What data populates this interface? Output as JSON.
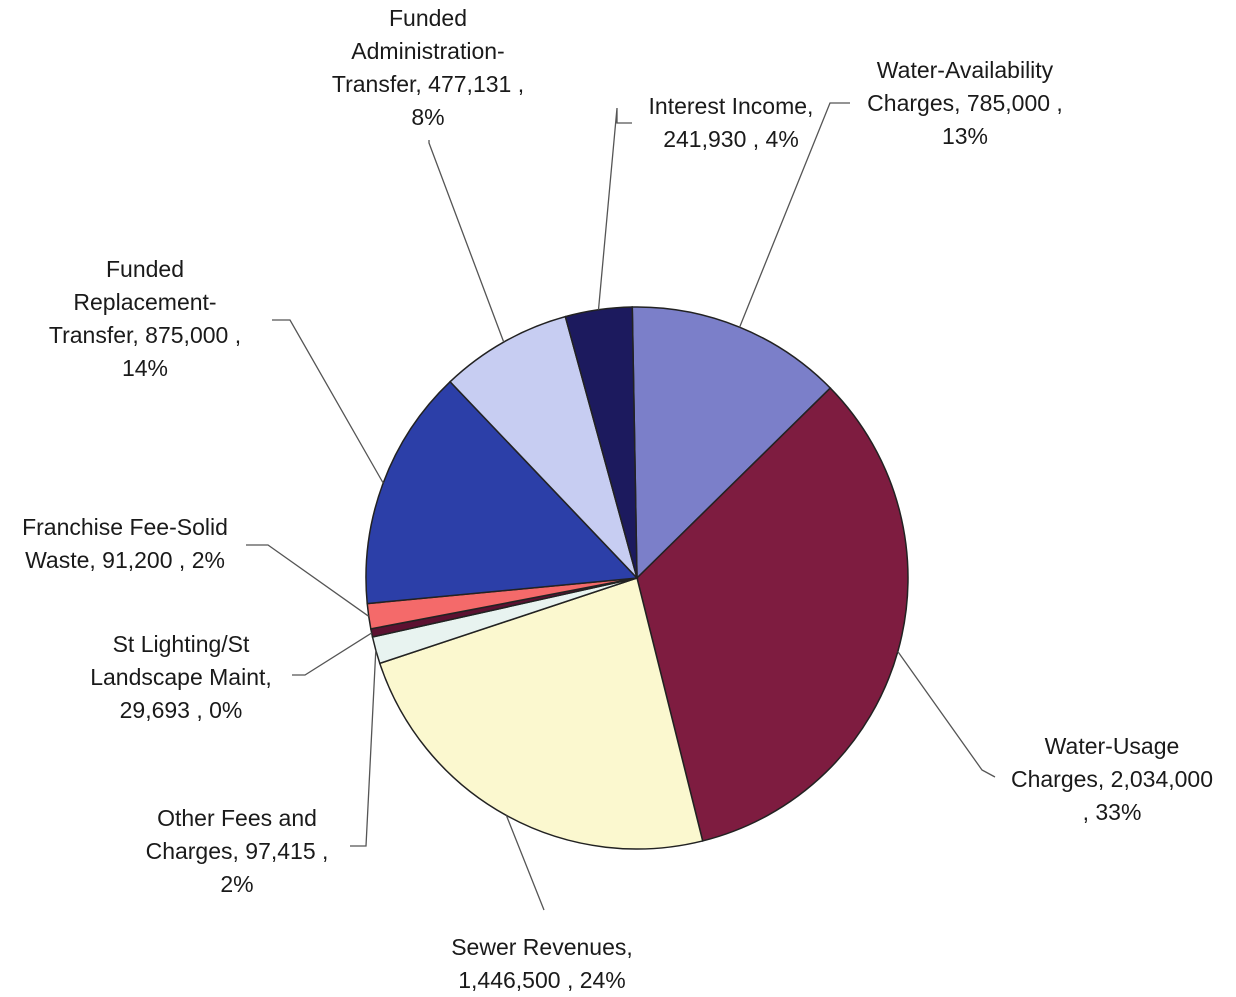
{
  "chart_data": {
    "type": "pie",
    "title": "",
    "slices": [
      {
        "name": "Water-Availability Charges",
        "value": 785000,
        "percent": "13%",
        "label_lines": [
          "Water-Availability",
          "Charges, 785,000 ,",
          "13%"
        ],
        "color": "#7b7fc9"
      },
      {
        "name": "Water-Usage Charges",
        "value": 2034000,
        "percent": "33%",
        "label_lines": [
          "Water-Usage",
          "Charges, 2,034,000",
          ", 33%"
        ],
        "color": "#7e1c40"
      },
      {
        "name": "Sewer Revenues",
        "value": 1446500,
        "percent": "24%",
        "label_lines": [
          "Sewer Revenues,",
          "1,446,500 , 24%"
        ],
        "color": "#fbf8cf"
      },
      {
        "name": "Other Fees and Charges",
        "value": 97415,
        "percent": "2%",
        "label_lines": [
          "Other Fees and",
          "Charges, 97,415 ,",
          "2%"
        ],
        "color": "#e8f3f0"
      },
      {
        "name": "St Lighting/St Landscape Maint",
        "value": 29693,
        "percent": "0%",
        "label_lines": [
          "St Lighting/St",
          "Landscape Maint,",
          "29,693 , 0%"
        ],
        "color": "#5c1131"
      },
      {
        "name": "Franchise Fee-Solid Waste",
        "value": 91200,
        "percent": "2%",
        "label_lines": [
          "Franchise Fee-Solid",
          "Waste, 91,200 , 2%"
        ],
        "color": "#f46a6a"
      },
      {
        "name": "Funded Replacement-Transfer",
        "value": 875000,
        "percent": "14%",
        "label_lines": [
          "Funded",
          "Replacement-",
          "Transfer, 875,000 ,",
          "14%"
        ],
        "color": "#2c3fa8"
      },
      {
        "name": "Funded Administration-Transfer",
        "value": 477131,
        "percent": "8%",
        "label_lines": [
          "Funded",
          "Administration-",
          "Transfer, 477,131 ,",
          "8%"
        ],
        "color": "#c7cdf2"
      },
      {
        "name": "Interest Income",
        "value": 241930,
        "percent": "4%",
        "label_lines": [
          "Interest Income,",
          "241,930 , 4%"
        ],
        "color": "#1c1a5e"
      }
    ]
  }
}
